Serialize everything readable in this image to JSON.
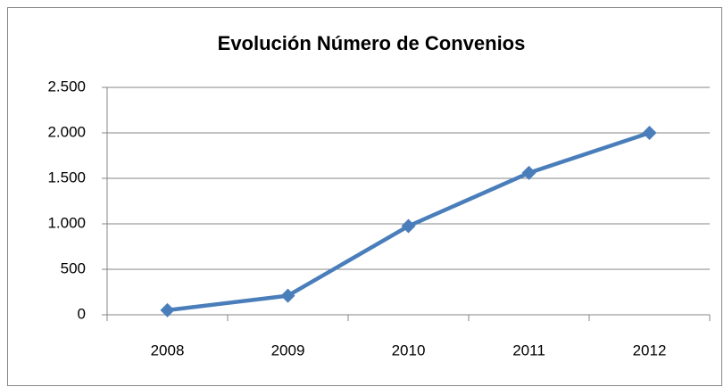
{
  "chart_data": {
    "type": "line",
    "title": "Evolución Número de Convenios",
    "categories": [
      "2008",
      "2009",
      "2010",
      "2011",
      "2012"
    ],
    "values": [
      50,
      210,
      975,
      1560,
      2000
    ],
    "color": "#4a7ebb",
    "ylim": [
      0,
      2500
    ],
    "yticks": [
      0,
      500,
      {
        "value": 1000,
        "label": "1.000"
      },
      {
        "value": 1500,
        "label": "1.500"
      },
      {
        "value": 2000,
        "label": "2.000"
      },
      {
        "value": 2500,
        "label": "2.500"
      }
    ],
    "grid": true
  }
}
